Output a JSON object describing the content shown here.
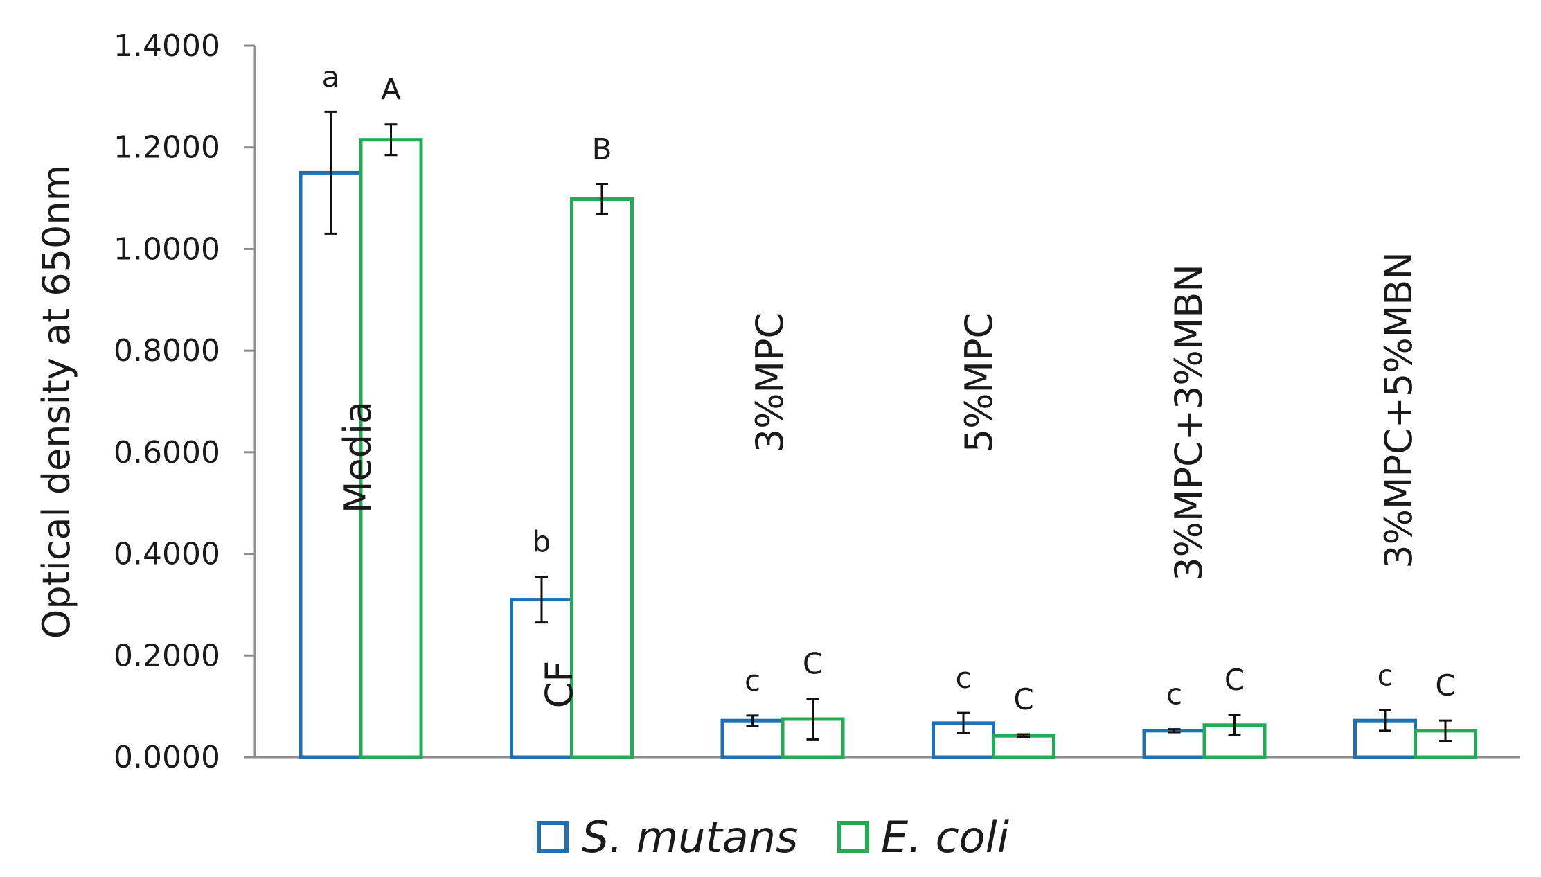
{
  "chart_data": {
    "type": "bar",
    "title": "",
    "xlabel": "",
    "ylabel": "Optical density at 650nm",
    "ylim": [
      0,
      1.4
    ],
    "yticks": [
      "0.0000",
      "0.2000",
      "0.4000",
      "0.6000",
      "0.8000",
      "1.0000",
      "1.2000",
      "1.4000"
    ],
    "grid": false,
    "legend_position": "bottom-center",
    "categories": [
      "Media",
      "CF",
      "3%MPC",
      "5%MPC",
      "3%MPC+3%MBN",
      "3%MPC+5%MBN"
    ],
    "series": [
      {
        "name": "S. mutans",
        "color": "#1f6fb3",
        "values": [
          1.15,
          0.31,
          0.072,
          0.067,
          0.052,
          0.072
        ],
        "errors": [
          0.12,
          0.045,
          0.01,
          0.02,
          0.003,
          0.02
        ],
        "sig_labels": [
          "a",
          "b",
          "c",
          "c",
          "c",
          "c"
        ]
      },
      {
        "name": "E. coli",
        "color": "#22aa55",
        "values": [
          1.215,
          1.098,
          0.075,
          0.042,
          0.063,
          0.052
        ],
        "errors": [
          0.03,
          0.03,
          0.04,
          0.003,
          0.02,
          0.02
        ],
        "sig_labels": [
          "A",
          "B",
          "C",
          "C",
          "C",
          "C"
        ]
      }
    ]
  }
}
